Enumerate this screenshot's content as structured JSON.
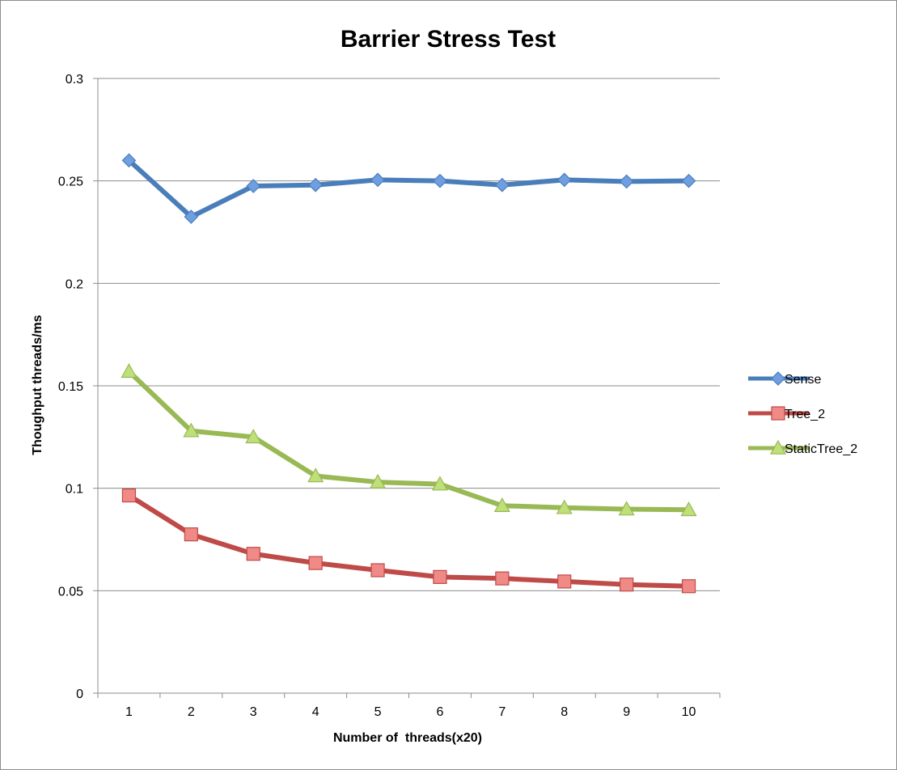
{
  "chart_data": {
    "type": "line",
    "title": "Barrier Stress Test",
    "xlabel": "Number of  threads(x20)",
    "ylabel": "Thoughput threads/ms",
    "categories": [
      "1",
      "2",
      "3",
      "4",
      "5",
      "6",
      "7",
      "8",
      "9",
      "10"
    ],
    "ylim": [
      0,
      0.3
    ],
    "yticks": [
      0,
      0.05,
      0.1,
      0.15,
      0.2,
      0.25,
      0.3
    ],
    "ytick_labels": [
      "0",
      "0.05",
      "0.1",
      "0.15",
      "0.2",
      "0.25",
      "0.3"
    ],
    "grid": true,
    "legend_position": "right",
    "series": [
      {
        "name": "Sense",
        "color": "#4a7ebb",
        "marker": "diamond",
        "marker_fill": "#6f9fe0",
        "values": [
          0.26,
          0.2325,
          0.2475,
          0.248,
          0.2505,
          0.25,
          0.248,
          0.2505,
          0.2497,
          0.25
        ]
      },
      {
        "name": "Tree_2",
        "color": "#be4b48",
        "marker": "square",
        "marker_fill": "#f08a87",
        "values": [
          0.0965,
          0.0775,
          0.068,
          0.0635,
          0.06,
          0.0567,
          0.056,
          0.0545,
          0.053,
          0.0522
        ]
      },
      {
        "name": "StaticTree_2",
        "color": "#98b954",
        "marker": "triangle",
        "marker_fill": "#bfdf7a",
        "values": [
          0.157,
          0.128,
          0.125,
          0.106,
          0.103,
          0.102,
          0.0915,
          0.0905,
          0.0898,
          0.0895
        ]
      }
    ]
  }
}
